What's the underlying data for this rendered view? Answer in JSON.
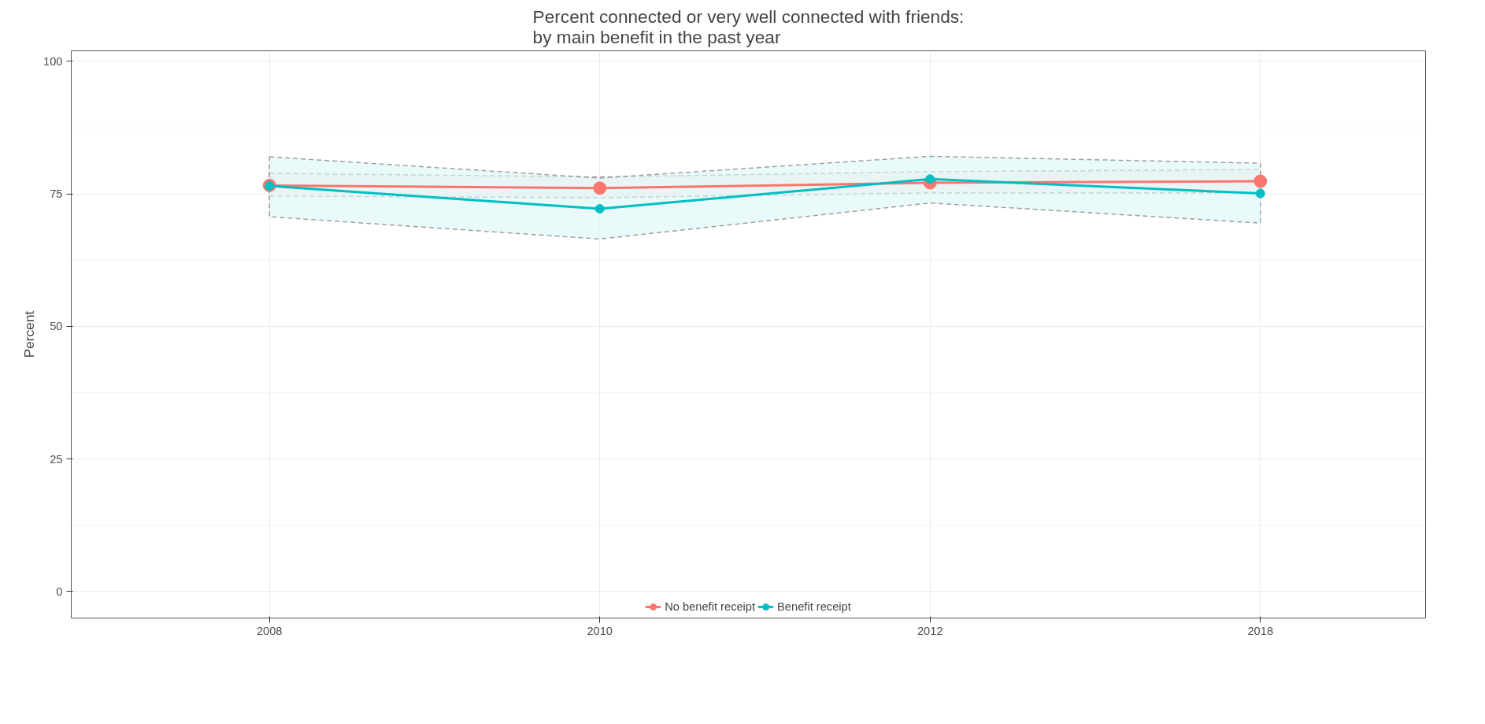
{
  "chart_data": {
    "type": "line",
    "title": "Percent connected or very well connected with friends:\nby main benefit in the past year",
    "ylabel": "Percent",
    "categories": [
      "2008",
      "2010",
      "2012",
      "2018"
    ],
    "ylim": [
      -5,
      102
    ],
    "yticks": [
      0,
      25,
      50,
      75,
      100
    ],
    "grid": true,
    "legend": "bottom",
    "marker": "circle",
    "line_style": "solid",
    "series": [
      {
        "name": "No benefit receipt",
        "color": "#f8766d",
        "values": [
          76.6,
          76.1,
          77.1,
          77.4
        ],
        "lower": [
          74.6,
          74.3,
          75.2,
          75.2
        ],
        "upper": [
          78.9,
          78.2,
          79.2,
          79.6
        ]
      },
      {
        "name": "Benefit receipt",
        "color": "#00bfc4",
        "values": [
          76.5,
          72.2,
          77.8,
          75.1
        ],
        "lower": [
          70.7,
          66.5,
          73.3,
          69.5
        ],
        "upper": [
          82.0,
          78.0,
          82.1,
          80.8
        ]
      }
    ]
  }
}
